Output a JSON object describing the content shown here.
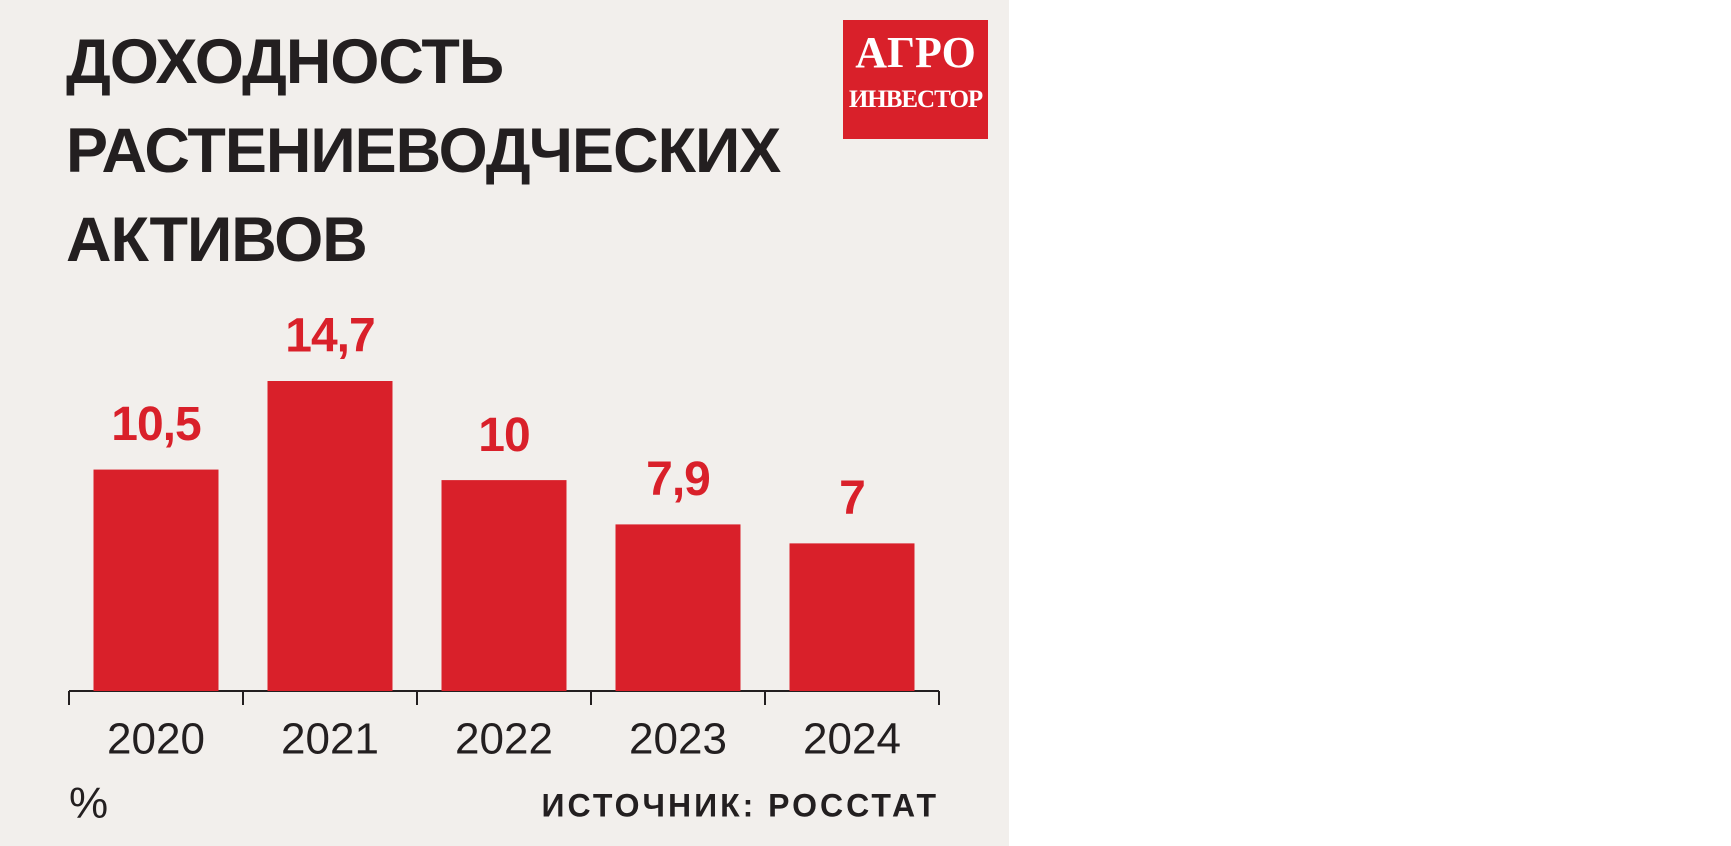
{
  "chart_data": {
    "type": "bar",
    "title": "ДОХОДНОСТЬ РАСТЕНИЕВОДЧЕСКИХ АКТИВОВ",
    "logo": [
      "АГРО",
      "ИНВЕСТОР"
    ],
    "categories": [
      "2020",
      "2021",
      "2022",
      "2023",
      "2024"
    ],
    "values": [
      10.5,
      14.7,
      10,
      7.9,
      7
    ],
    "value_labels": [
      "10,5",
      "14,7",
      "10",
      "7,9",
      "7"
    ],
    "color": "#d9202a",
    "unit": "%",
    "source": "ИСТОЧНИК: РОССТАТ"
  }
}
